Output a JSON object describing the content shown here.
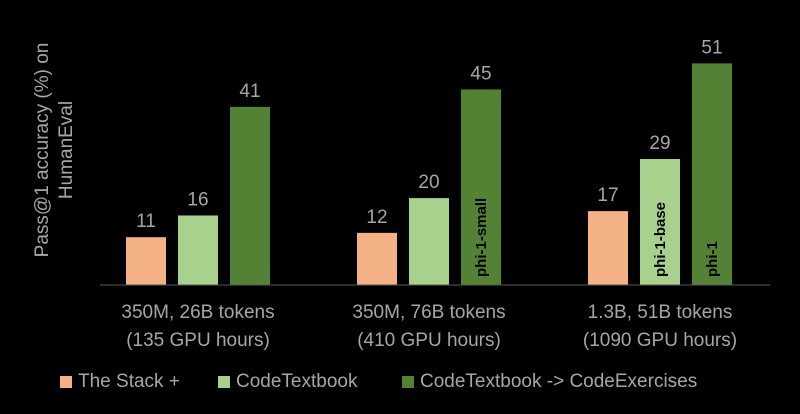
{
  "chart_data": {
    "type": "bar",
    "ylabel": "Pass@1 accuracy (%) on HumanEval",
    "ylabel_lines": [
      "Pass@1 accuracy (%) on",
      "HumanEval"
    ],
    "categories": [
      "350M, 26B tokens (135 GPU hours)",
      "350M, 76B tokens (410 GPU hours)",
      "1.3B, 51B tokens (1090 GPU hours)"
    ],
    "category_lines": [
      [
        "350M, 26B tokens",
        "(135 GPU hours)"
      ],
      [
        "350M, 76B tokens",
        "(410 GPU hours)"
      ],
      [
        "1.3B, 51B tokens",
        "(1090 GPU hours)"
      ]
    ],
    "series": [
      {
        "name": "The Stack +",
        "color": "#f4b183",
        "values": [
          11,
          12,
          17
        ]
      },
      {
        "name": "CodeTextbook",
        "color": "#a9d18e",
        "values": [
          16,
          20,
          29
        ]
      },
      {
        "name": "CodeTextbook -> CodeExercises",
        "color": "#548235",
        "values": [
          41,
          45,
          51
        ]
      }
    ],
    "bar_annotations": [
      {
        "category": 1,
        "series": 2,
        "text": "phi-1-small"
      },
      {
        "category": 2,
        "series": 1,
        "text": "phi-1-base"
      },
      {
        "category": 2,
        "series": 2,
        "text": "phi-1"
      }
    ],
    "ylim": [
      0,
      55
    ],
    "grid": false,
    "legend_position": "bottom",
    "colors": {
      "background": "#000000",
      "text": "#a6a6a6",
      "axis": "#595959",
      "annotation": "#000000"
    }
  }
}
